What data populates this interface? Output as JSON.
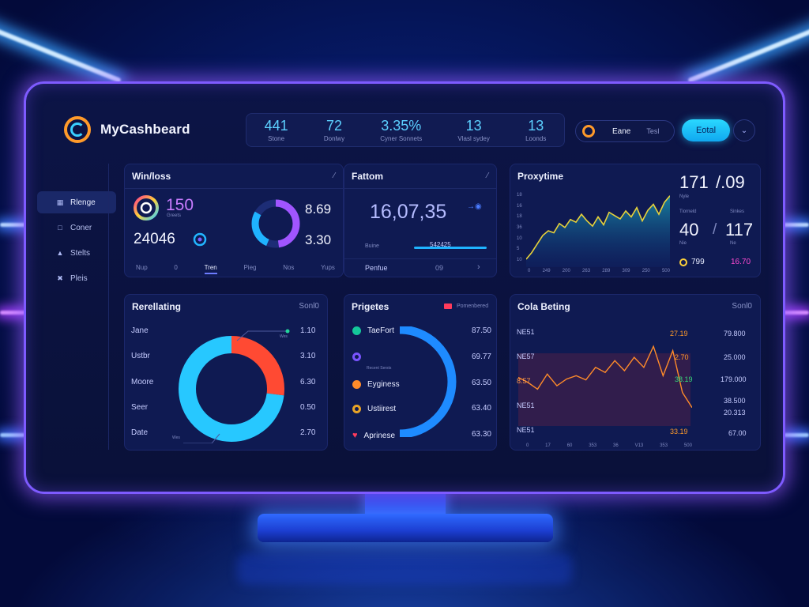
{
  "header": {
    "app_title": "MyCashbeard",
    "stats": [
      {
        "value": "441",
        "label": "Stone"
      },
      {
        "value": "72",
        "label": "Donlwy"
      },
      {
        "value": "3.35%",
        "label": "Cyner Sonnets"
      },
      {
        "value": "13",
        "label": "Vlasl sydey"
      },
      {
        "value": "13",
        "label": "Loonds"
      }
    ],
    "filter_primary": "Eane",
    "filter_secondary": "Tesl",
    "total_button": "Eotal"
  },
  "sidebar": {
    "items": [
      {
        "label": "Rlenge",
        "icon": "grid-icon",
        "active": true
      },
      {
        "label": "Coner",
        "icon": "box-icon",
        "active": false
      },
      {
        "label": "Stelts",
        "icon": "users-icon",
        "active": false
      },
      {
        "label": "Pleis",
        "icon": "network-icon",
        "active": false
      }
    ]
  },
  "winloss": {
    "title": "Win/loss",
    "badge_value": "150",
    "badge_caption": "Greets",
    "total": "24046",
    "ring_values": [
      "8.69",
      "3.30"
    ],
    "tabs": [
      "Nup",
      "0",
      "Tren",
      "Pieg",
      "Nos",
      "Yups"
    ],
    "active_tab": "Tren"
  },
  "fattom": {
    "title": "Fattom",
    "big_value": "16,07,35",
    "legend_label": "Buine",
    "side_value": "542425",
    "footer_label": "Penfue",
    "footer_value": "09"
  },
  "proxytime": {
    "title": "Proxytime",
    "stat1_value": "171",
    "stat1_sep": "/.09",
    "stat1_label": "Nyle",
    "stat2_label_a": "Tiorneld",
    "stat2_label_b": "Sinkes",
    "stat2_value_a": "40",
    "stat2_value_b": "117",
    "stat2_sub_a": "Nie",
    "stat2_sub_b": "Ne",
    "metric_left": "799",
    "metric_right": "16.70",
    "chart_data": {
      "type": "area",
      "ylabels": [
        "18",
        "16",
        "18",
        "36",
        "10",
        "5",
        "10"
      ],
      "xlabels": [
        "0",
        "249",
        "200",
        "263",
        "289",
        "309",
        "250",
        "500"
      ],
      "values": [
        12,
        22,
        35,
        48,
        55,
        52,
        66,
        60,
        72,
        68,
        80,
        70,
        62,
        76,
        64,
        83,
        78,
        73,
        85,
        76,
        90,
        70,
        86,
        95,
        80,
        98,
        108
      ]
    }
  },
  "relating": {
    "title": "Rerellating",
    "action": "Sonl0",
    "callout": "Wes",
    "callout_bottom": "Wes",
    "rows": [
      {
        "label": "Jane",
        "value": "1.10"
      },
      {
        "label": "Ustbr",
        "value": "3.10"
      },
      {
        "label": "Moore",
        "value": "6.30"
      },
      {
        "label": "Seer",
        "value": "0.50"
      },
      {
        "label": "Date",
        "value": "2.70"
      }
    ],
    "chart_data": {
      "type": "pie",
      "categories": [
        "Red",
        "Cyan"
      ],
      "values": [
        0.27,
        0.73
      ],
      "colors": [
        "#ff4a33",
        "#27c8ff"
      ]
    }
  },
  "prigetes": {
    "title": "Prigetes",
    "action": "Pomenbered",
    "note": "Recent Sersts",
    "rows": [
      {
        "label": "TaeFort",
        "value": "87.50",
        "color": "#14c79a"
      },
      {
        "label": "",
        "value": "69.77",
        "color": "#7a54ff"
      },
      {
        "label": "Eyginess",
        "value": "63.50",
        "color": "#ff8b2a"
      },
      {
        "label": "Ustiirest",
        "value": "63.40",
        "color": "#e9a426"
      },
      {
        "label": "Aprinese",
        "value": "63.30",
        "color": "#ff3b5c"
      }
    ]
  },
  "cola": {
    "title": "Cola Beting",
    "action": "Sonl0",
    "row_labels": [
      "NE51",
      "NE57",
      "8.57",
      "NE51",
      "NE51"
    ],
    "mid_values": [
      "27.19",
      "2.70",
      "38.19",
      "",
      "33.19"
    ],
    "right_values": [
      "79.800",
      "25.000",
      "179.000",
      "38.500",
      "20.313",
      "67.00"
    ],
    "chart_data": {
      "type": "line",
      "xlabels": [
        "0",
        "17",
        "60",
        "353",
        "36",
        "V13",
        "353",
        "500"
      ],
      "values": [
        58,
        52,
        44,
        62,
        48,
        56,
        60,
        55,
        70,
        64,
        78,
        66,
        82,
        70,
        95,
        60,
        90,
        40,
        22
      ]
    }
  }
}
